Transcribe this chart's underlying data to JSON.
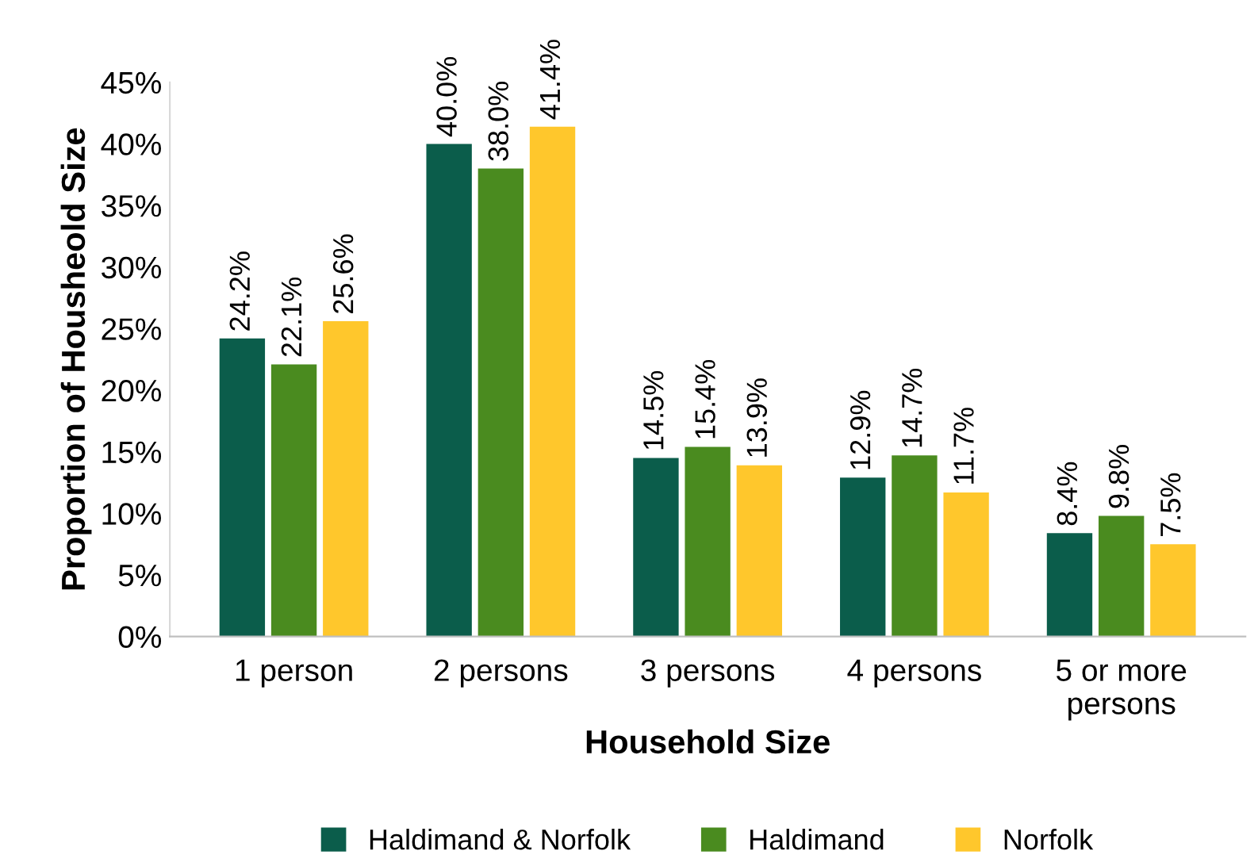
{
  "chart_data": {
    "type": "bar",
    "xlabel": "Household Size",
    "ylabel": "Proportion of Housheold Size",
    "categories": [
      "1 person",
      "2 persons",
      "3 persons",
      "4 persons",
      "5 or more\npersons"
    ],
    "series": [
      {
        "name": "Haldimand & Norfolk",
        "color": "#0b5d4b",
        "values": [
          24.2,
          40.0,
          14.5,
          12.9,
          8.4
        ],
        "value_labels": [
          "24.2%",
          "40.0%",
          "14.5%",
          "12.9%",
          "8.4%"
        ]
      },
      {
        "name": "Haldimand",
        "color": "#4a8b1f",
        "values": [
          22.1,
          38.0,
          15.4,
          14.7,
          9.8
        ],
        "value_labels": [
          "22.1%",
          "38.0%",
          "15.4%",
          "14.7%",
          "9.8%"
        ]
      },
      {
        "name": "Norfolk",
        "color": "#ffc72c",
        "values": [
          25.6,
          41.4,
          13.9,
          11.7,
          7.5
        ],
        "value_labels": [
          "25.6%",
          "41.4%",
          "13.9%",
          "11.7%",
          "7.5%"
        ]
      }
    ],
    "ylim": [
      0,
      45
    ],
    "yticks": [
      {
        "value": 0,
        "label": "0%"
      },
      {
        "value": 5,
        "label": "5%"
      },
      {
        "value": 10,
        "label": "10%"
      },
      {
        "value": 15,
        "label": "15%"
      },
      {
        "value": 20,
        "label": "20%"
      },
      {
        "value": 25,
        "label": "25%"
      },
      {
        "value": 30,
        "label": "30%"
      },
      {
        "value": 35,
        "label": "35%"
      },
      {
        "value": 40,
        "label": "40%"
      },
      {
        "value": 45,
        "label": "45%"
      }
    ],
    "grid": false,
    "legend": "bottom"
  }
}
